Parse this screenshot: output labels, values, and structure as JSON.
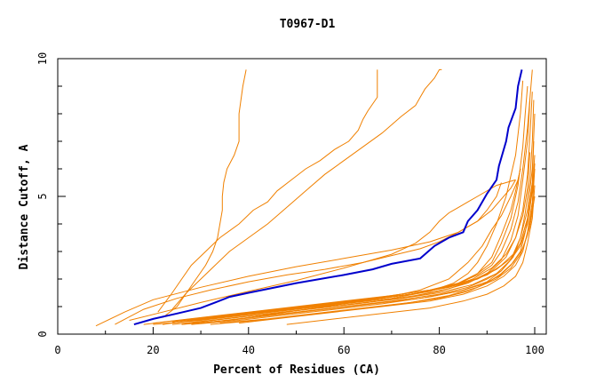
{
  "chart_data": {
    "type": "line",
    "title": "T0967-D1",
    "xlabel": "Percent of Residues (CA)",
    "ylabel": "Distance Cutoff, A",
    "xlim": [
      0,
      100
    ],
    "ylim": [
      0,
      10
    ],
    "x_ticks": [
      "0",
      "20",
      "40",
      "60",
      "80",
      "100"
    ],
    "y_ticks": [
      "0",
      "5",
      "10"
    ],
    "grid": false,
    "colors": {
      "highlight": "#0000cc",
      "others": "#f08000",
      "axis": "#000000"
    },
    "highlight": {
      "x": [
        16,
        20,
        25,
        30,
        33,
        36,
        40,
        50,
        60,
        66,
        70,
        76,
        79,
        82,
        85,
        86,
        88,
        90,
        92,
        92.5,
        94,
        94.5,
        96,
        96.5,
        97.3
      ],
      "y": [
        0.35,
        0.55,
        0.75,
        0.95,
        1.15,
        1.35,
        1.5,
        1.85,
        2.15,
        2.35,
        2.55,
        2.75,
        3.2,
        3.5,
        3.7,
        4.1,
        4.5,
        5.1,
        5.6,
        6.1,
        7.0,
        7.5,
        8.2,
        9.0,
        9.6
      ]
    },
    "others": [
      {
        "x": [
          22,
          25,
          27,
          29,
          31,
          32.5,
          33.5,
          34,
          34.5,
          34.5,
          34.8,
          35.5,
          37,
          38,
          38,
          38.8,
          39.5
        ],
        "y": [
          0.6,
          1.0,
          1.5,
          2.0,
          2.5,
          3.0,
          3.5,
          4.0,
          4.5,
          5.0,
          5.5,
          6.0,
          6.5,
          7.0,
          8.0,
          9.0,
          9.6
        ]
      },
      {
        "x": [
          21,
          24,
          26,
          28,
          31,
          34,
          38,
          41,
          44,
          46,
          49,
          52,
          55,
          58,
          61,
          63,
          64,
          65,
          67,
          67,
          67
        ],
        "y": [
          0.8,
          1.5,
          2.0,
          2.5,
          3.0,
          3.5,
          4.0,
          4.5,
          4.8,
          5.2,
          5.6,
          6.0,
          6.3,
          6.7,
          7.0,
          7.4,
          7.8,
          8.1,
          8.6,
          9.2,
          9.6
        ]
      },
      {
        "x": [
          24,
          27,
          30,
          33,
          36,
          40,
          44,
          48,
          52,
          56,
          60,
          64,
          68,
          72,
          75,
          76,
          77,
          79,
          80,
          80.5
        ],
        "y": [
          0.9,
          1.5,
          2.0,
          2.5,
          3.0,
          3.5,
          4.0,
          4.6,
          5.2,
          5.8,
          6.3,
          6.8,
          7.3,
          7.9,
          8.3,
          8.6,
          8.9,
          9.3,
          9.6,
          9.6
        ]
      },
      {
        "x": [
          12,
          18,
          25,
          32,
          40,
          48,
          56,
          64,
          70,
          76,
          80,
          84,
          88,
          90,
          92,
          93
        ],
        "y": [
          0.35,
          0.9,
          1.3,
          1.6,
          1.9,
          2.15,
          2.35,
          2.6,
          2.85,
          3.1,
          3.35,
          3.7,
          4.1,
          4.5,
          5.0,
          5.5
        ]
      },
      {
        "x": [
          8,
          14,
          20,
          30,
          40,
          50,
          60,
          70,
          78,
          84,
          88,
          91,
          93,
          95,
          96
        ],
        "y": [
          0.3,
          0.8,
          1.25,
          1.7,
          2.1,
          2.45,
          2.75,
          3.05,
          3.35,
          3.7,
          4.1,
          4.5,
          4.9,
          5.3,
          5.6
        ]
      },
      {
        "x": [
          15,
          22,
          30,
          40,
          50,
          60,
          70,
          75,
          78,
          80,
          82,
          84,
          86,
          88,
          92,
          96
        ],
        "y": [
          0.5,
          0.8,
          1.15,
          1.55,
          1.95,
          2.4,
          2.9,
          3.3,
          3.7,
          4.1,
          4.4,
          4.6,
          4.8,
          5.0,
          5.4,
          5.6
        ]
      },
      {
        "x": [
          20,
          30,
          40,
          50,
          60,
          70,
          78,
          83,
          86,
          88,
          90,
          92,
          94,
          96,
          97,
          97.5
        ],
        "y": [
          0.35,
          0.5,
          0.7,
          0.9,
          1.1,
          1.3,
          1.55,
          1.85,
          2.2,
          2.6,
          3.2,
          4.0,
          5.0,
          6.5,
          8.0,
          9.2
        ]
      },
      {
        "x": [
          22,
          30,
          40,
          50,
          60,
          70,
          78,
          84,
          88,
          91,
          93,
          95,
          96.5,
          97.5,
          98,
          98.5
        ],
        "y": [
          0.35,
          0.55,
          0.75,
          0.95,
          1.15,
          1.35,
          1.55,
          1.85,
          2.2,
          2.6,
          3.3,
          4.2,
          5.4,
          6.8,
          8.0,
          9.0
        ]
      },
      {
        "x": [
          24,
          32,
          42,
          52,
          62,
          72,
          80,
          86,
          90,
          93,
          95,
          96.5,
          97.5,
          98.5,
          99
        ],
        "y": [
          0.35,
          0.5,
          0.7,
          0.9,
          1.1,
          1.3,
          1.55,
          1.85,
          2.2,
          2.7,
          3.4,
          4.3,
          5.6,
          7.0,
          8.5
        ]
      },
      {
        "x": [
          20,
          30,
          40,
          50,
          60,
          70,
          78,
          84,
          88,
          91,
          93,
          95,
          96.5,
          97.5,
          98.5,
          99.5
        ],
        "y": [
          0.4,
          0.6,
          0.8,
          1.0,
          1.2,
          1.4,
          1.6,
          1.85,
          2.15,
          2.5,
          3.0,
          3.8,
          4.8,
          6.0,
          7.5,
          9.6
        ]
      },
      {
        "x": [
          26,
          35,
          45,
          55,
          65,
          75,
          82,
          87,
          91,
          94,
          96,
          97.5,
          98.5,
          99,
          99.5
        ],
        "y": [
          0.35,
          0.55,
          0.75,
          0.95,
          1.15,
          1.4,
          1.65,
          1.95,
          2.3,
          2.8,
          3.5,
          4.5,
          5.8,
          7.2,
          8.8
        ]
      },
      {
        "x": [
          28,
          38,
          48,
          58,
          68,
          78,
          85,
          90,
          93,
          95.5,
          97,
          98,
          99,
          99.5,
          99.8
        ],
        "y": [
          0.35,
          0.5,
          0.7,
          0.9,
          1.1,
          1.35,
          1.6,
          1.9,
          2.3,
          2.8,
          3.5,
          4.4,
          5.6,
          7.0,
          8.5
        ]
      },
      {
        "x": [
          24,
          34,
          44,
          54,
          64,
          74,
          82,
          88,
          92,
          95,
          97,
          98.5,
          99.5,
          99.8
        ],
        "y": [
          0.45,
          0.65,
          0.85,
          1.05,
          1.25,
          1.45,
          1.7,
          2.0,
          2.35,
          2.75,
          3.3,
          4.2,
          5.5,
          7.0
        ]
      },
      {
        "x": [
          30,
          40,
          50,
          60,
          70,
          80,
          86,
          90,
          93,
          95,
          97,
          98.5,
          99.5,
          100
        ],
        "y": [
          0.4,
          0.6,
          0.8,
          1.0,
          1.2,
          1.45,
          1.7,
          2.0,
          2.3,
          2.7,
          3.2,
          4.0,
          5.2,
          6.5
        ]
      },
      {
        "x": [
          18,
          28,
          38,
          48,
          58,
          68,
          78,
          85,
          90,
          93,
          95.5,
          97,
          98.5,
          99.5,
          100
        ],
        "y": [
          0.35,
          0.55,
          0.75,
          0.95,
          1.15,
          1.35,
          1.6,
          1.85,
          2.15,
          2.5,
          2.9,
          3.5,
          4.5,
          6.0,
          8.0
        ]
      },
      {
        "x": [
          34,
          44,
          54,
          64,
          74,
          82,
          88,
          92,
          95,
          97,
          98.5,
          99.5,
          100
        ],
        "y": [
          0.4,
          0.55,
          0.75,
          0.95,
          1.15,
          1.4,
          1.7,
          2.0,
          2.4,
          2.9,
          3.6,
          4.6,
          6.0
        ]
      },
      {
        "x": [
          26,
          36,
          46,
          56,
          66,
          76,
          84,
          89,
          92.5,
          95,
          97,
          98,
          99,
          99.8
        ],
        "y": [
          0.35,
          0.5,
          0.7,
          0.9,
          1.1,
          1.3,
          1.55,
          1.8,
          2.1,
          2.5,
          3.0,
          3.7,
          4.6,
          5.8
        ]
      },
      {
        "x": [
          32,
          42,
          52,
          62,
          72,
          80,
          86,
          90,
          93,
          95.5,
          97.5,
          99,
          100
        ],
        "y": [
          0.35,
          0.5,
          0.7,
          0.9,
          1.1,
          1.3,
          1.55,
          1.85,
          2.2,
          2.6,
          3.1,
          3.9,
          5.0
        ]
      },
      {
        "x": [
          38,
          48,
          58,
          68,
          78,
          85,
          90,
          93.5,
          96,
          97.5,
          98.5,
          99.5,
          100
        ],
        "y": [
          0.4,
          0.6,
          0.8,
          1.0,
          1.2,
          1.45,
          1.75,
          2.1,
          2.5,
          3.0,
          3.7,
          4.8,
          6.2
        ]
      },
      {
        "x": [
          48,
          58,
          68,
          78,
          85,
          90,
          93.5,
          96,
          97.5,
          98.5,
          99.5,
          100
        ],
        "y": [
          0.35,
          0.55,
          0.75,
          0.95,
          1.2,
          1.45,
          1.75,
          2.1,
          2.6,
          3.3,
          4.2,
          5.4
        ]
      },
      {
        "x": [
          28,
          38,
          48,
          58,
          68,
          76,
          82,
          86,
          89,
          91,
          93,
          95,
          96.5,
          97
        ],
        "y": [
          0.5,
          0.7,
          0.9,
          1.1,
          1.3,
          1.6,
          2.0,
          2.6,
          3.2,
          3.8,
          4.3,
          5.0,
          5.6,
          6.0
        ]
      },
      {
        "x": [
          36,
          46,
          56,
          66,
          76,
          84,
          88,
          91,
          93,
          95,
          96,
          97
        ],
        "y": [
          0.5,
          0.75,
          1.0,
          1.25,
          1.5,
          1.8,
          2.2,
          2.8,
          3.6,
          4.5,
          5.2,
          6.0
        ]
      },
      {
        "x": [
          24,
          34,
          44,
          54,
          64,
          74,
          82,
          87,
          91,
          94,
          96,
          97.5,
          98.5,
          99
        ],
        "y": [
          0.4,
          0.6,
          0.8,
          1.0,
          1.2,
          1.45,
          1.7,
          2.0,
          2.4,
          2.9,
          3.5,
          4.3,
          5.3,
          6.6
        ]
      },
      {
        "x": [
          30,
          40,
          50,
          60,
          70,
          80,
          87,
          92,
          95,
          97,
          98.5,
          99.5
        ],
        "y": [
          0.45,
          0.65,
          0.85,
          1.05,
          1.25,
          1.5,
          1.8,
          2.2,
          2.7,
          3.3,
          4.2,
          5.5
        ]
      }
    ]
  }
}
